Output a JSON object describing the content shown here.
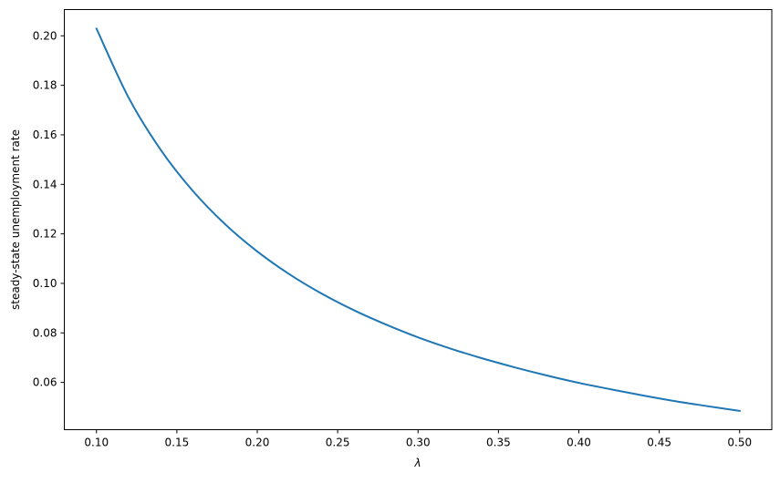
{
  "chart_data": {
    "type": "line",
    "title": "",
    "xlabel": "λ",
    "ylabel": "steady-state unemployment rate",
    "xlim": [
      0.08,
      0.52
    ],
    "ylim": [
      0.0409,
      0.2106
    ],
    "xticks": [
      "0.10",
      "0.15",
      "0.20",
      "0.25",
      "0.30",
      "0.35",
      "0.40",
      "0.45",
      "0.50"
    ],
    "yticks": [
      "0.06",
      "0.08",
      "0.10",
      "0.12",
      "0.14",
      "0.16",
      "0.18",
      "0.20"
    ],
    "grid": false,
    "series": [
      {
        "color": "#1f77b4",
        "x": [
          0.1,
          0.12,
          0.14,
          0.16,
          0.18,
          0.2,
          0.22,
          0.24,
          0.26,
          0.28,
          0.3,
          0.32,
          0.34,
          0.36,
          0.38,
          0.4,
          0.42,
          0.44,
          0.46,
          0.48,
          0.5
        ],
        "y": [
          0.2029,
          0.175,
          0.1539,
          0.1373,
          0.1239,
          0.1129,
          0.1037,
          0.0959,
          0.0892,
          0.0834,
          0.0782,
          0.0737,
          0.0697,
          0.0661,
          0.0628,
          0.0598,
          0.0572,
          0.0547,
          0.0524,
          0.0504,
          0.0485
        ]
      }
    ]
  }
}
